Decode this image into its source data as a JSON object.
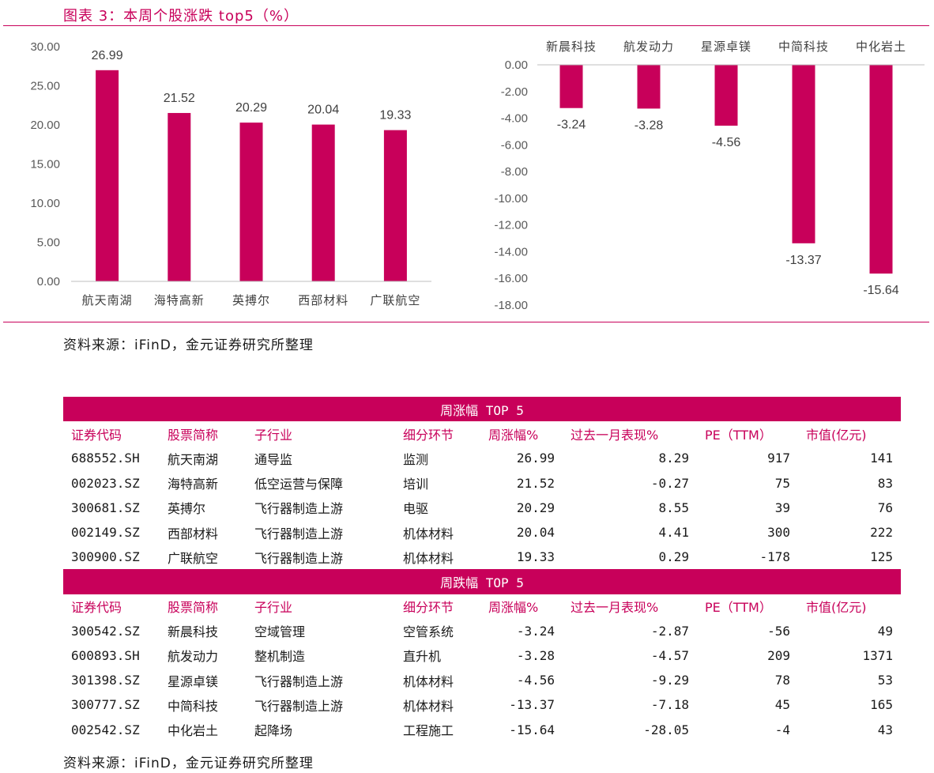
{
  "figure": {
    "title": "图表 3：本周个股涨跌 top5（%）",
    "source": "资料来源：iFinD，金元证券研究所整理"
  },
  "chart_data": [
    {
      "type": "bar",
      "title": "",
      "categories": [
        "航天南湖",
        "海特高新",
        "英搏尔",
        "西部材料",
        "广联航空"
      ],
      "values": [
        26.99,
        21.52,
        20.29,
        20.04,
        19.33
      ],
      "ylim": [
        0,
        30
      ],
      "yticks": [
        "0.00",
        "5.00",
        "10.00",
        "15.00",
        "20.00",
        "25.00",
        "30.00"
      ],
      "value_labels": [
        "26.99",
        "21.52",
        "20.29",
        "20.04",
        "19.33"
      ],
      "color": "#c8005a",
      "grid": false
    },
    {
      "type": "bar",
      "title": "",
      "categories": [
        "新晨科技",
        "航发动力",
        "星源卓镁",
        "中简科技",
        "中化岩土"
      ],
      "values": [
        -3.24,
        -3.28,
        -4.56,
        -13.37,
        -15.64
      ],
      "ylim": [
        -18,
        0
      ],
      "yticks": [
        "0.00",
        "-2.00",
        "-4.00",
        "-6.00",
        "-8.00",
        "-10.00",
        "-12.00",
        "-14.00",
        "-16.00",
        "-18.00"
      ],
      "value_labels": [
        "-3.24",
        "-3.28",
        "-4.56",
        "-13.37",
        "-15.64"
      ],
      "category_axis_position": "top",
      "color": "#c8005a",
      "grid": false
    }
  ],
  "table": {
    "top_band": "周涨幅 TOP 5",
    "bottom_band": "周跌幅 TOP 5",
    "headers": [
      "证券代码",
      "股票简称",
      "子行业",
      "细分环节",
      "周涨幅%",
      "过去一月表现%",
      "PE（TTM）",
      "市值(亿元)"
    ],
    "gainers": [
      [
        "688552.SH",
        "航天南湖",
        "通导监",
        "监测",
        "26.99",
        "8.29",
        "917",
        "141"
      ],
      [
        "002023.SZ",
        "海特高新",
        "低空运营与保障",
        "培训",
        "21.52",
        "-0.27",
        "75",
        "83"
      ],
      [
        "300681.SZ",
        "英搏尔",
        "飞行器制造上游",
        "电驱",
        "20.29",
        "8.55",
        "39",
        "76"
      ],
      [
        "002149.SZ",
        "西部材料",
        "飞行器制造上游",
        "机体材料",
        "20.04",
        "4.41",
        "300",
        "222"
      ],
      [
        "300900.SZ",
        "广联航空",
        "飞行器制造上游",
        "机体材料",
        "19.33",
        "0.29",
        "-178",
        "125"
      ]
    ],
    "losers": [
      [
        "300542.SZ",
        "新晨科技",
        "空域管理",
        "空管系统",
        "-3.24",
        "-2.87",
        "-56",
        "49"
      ],
      [
        "600893.SH",
        "航发动力",
        "整机制造",
        "直升机",
        "-3.28",
        "-4.57",
        "209",
        "1371"
      ],
      [
        "301398.SZ",
        "星源卓镁",
        "飞行器制造上游",
        "机体材料",
        "-4.56",
        "-9.29",
        "78",
        "53"
      ],
      [
        "300777.SZ",
        "中简科技",
        "飞行器制造上游",
        "机体材料",
        "-13.37",
        "-7.18",
        "45",
        "165"
      ],
      [
        "002542.SZ",
        "中化岩土",
        "起降场",
        "工程施工",
        "-15.64",
        "-28.05",
        "-4",
        "43"
      ]
    ],
    "source": "资料来源：iFinD，金元证券研究所整理"
  },
  "colors": {
    "accent": "#c8005a",
    "header_text": "#c8005a",
    "band_text": "#ffffff"
  }
}
